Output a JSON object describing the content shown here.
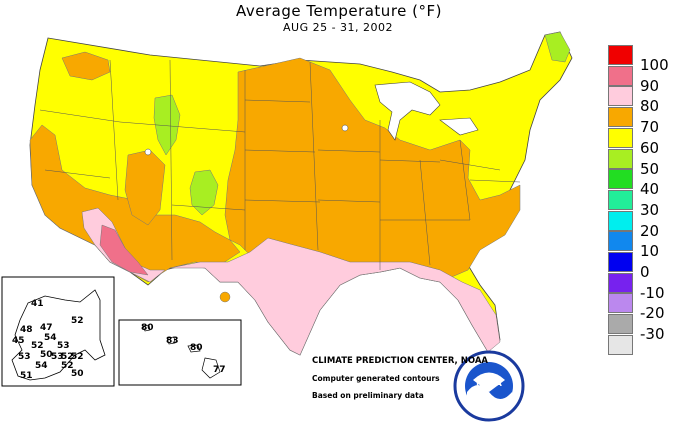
{
  "title": "Average Temperature (°F)",
  "subtitle": "AUG 25 - 31, 2002",
  "legend": [
    {
      "label": "100",
      "color": "#f00000"
    },
    {
      "label": "90",
      "color": "#f0708a"
    },
    {
      "label": "80",
      "color": "#ffccdd"
    },
    {
      "label": "70",
      "color": "#f8a800"
    },
    {
      "label": "60",
      "color": "#ffff00"
    },
    {
      "label": "50",
      "color": "#a8ee22"
    },
    {
      "label": "40",
      "color": "#22dd22"
    },
    {
      "label": "30",
      "color": "#22ee99"
    },
    {
      "label": "20",
      "color": "#00eeee"
    },
    {
      "label": "10",
      "color": "#1188ee"
    },
    {
      "label": "0",
      "color": "#0000f0"
    },
    {
      "label": "-10",
      "color": "#7722ee"
    },
    {
      "label": "-20",
      "color": "#bb88ee"
    },
    {
      "label": "-30",
      "color": "#aaaaaa"
    },
    {
      "label": "",
      "color": "#e6e6e6"
    }
  ],
  "alaska_labels": [
    "41",
    "52",
    "48",
    "47",
    "54",
    "45",
    "52",
    "53",
    "50",
    "53",
    "52",
    "53",
    "54",
    "52",
    "52",
    "50",
    "51"
  ],
  "hawaii_labels": [
    "80",
    "83",
    "80",
    "77"
  ],
  "credits": {
    "center": "CLIMATE PREDICTION CENTER, NOAA",
    "line1": "Computer generated contours",
    "line2": "Based on preliminary data"
  },
  "noaa_logo_text": "NOAA",
  "noaa_ring_text": "NATIONAL OCEANIC AND ATMOSPHERIC ADMINISTRATION • U.S. DEPARTMENT OF COMMERCE"
}
